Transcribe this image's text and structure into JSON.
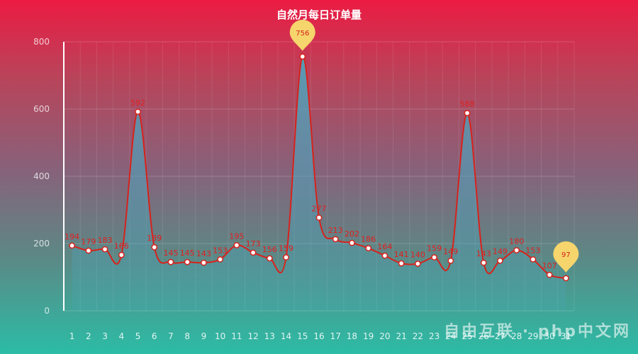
{
  "chart_data": {
    "type": "line",
    "title": "自然月每日订单量",
    "categories": [
      "1",
      "2",
      "3",
      "4",
      "5",
      "6",
      "7",
      "8",
      "9",
      "10",
      "11",
      "12",
      "13",
      "14",
      "15",
      "16",
      "17",
      "18",
      "19",
      "20",
      "21",
      "22",
      "23",
      "24",
      "25",
      "26",
      "27",
      "28",
      "29",
      "30",
      "31"
    ],
    "series": [
      {
        "values": [
          194,
          179,
          183,
          166,
          592,
          189,
          145,
          145,
          143,
          153,
          195,
          173,
          156,
          159,
          756,
          277,
          213,
          202,
          186,
          164,
          141,
          140,
          159,
          149,
          588,
          143,
          149,
          180,
          153,
          107,
          97
        ]
      }
    ],
    "ylim": [
      0,
      800
    ],
    "yticks": [
      0,
      200,
      400,
      600,
      800
    ],
    "grid": true,
    "markers": {
      "max_label": "756",
      "min_label": "97"
    },
    "colors": {
      "line": "#d7221c",
      "label": "#e02020",
      "area": "#4aa7c0",
      "pin": "#f5d56c"
    }
  },
  "watermark": {
    "text": "自由互联",
    "site": "php 中文网"
  }
}
